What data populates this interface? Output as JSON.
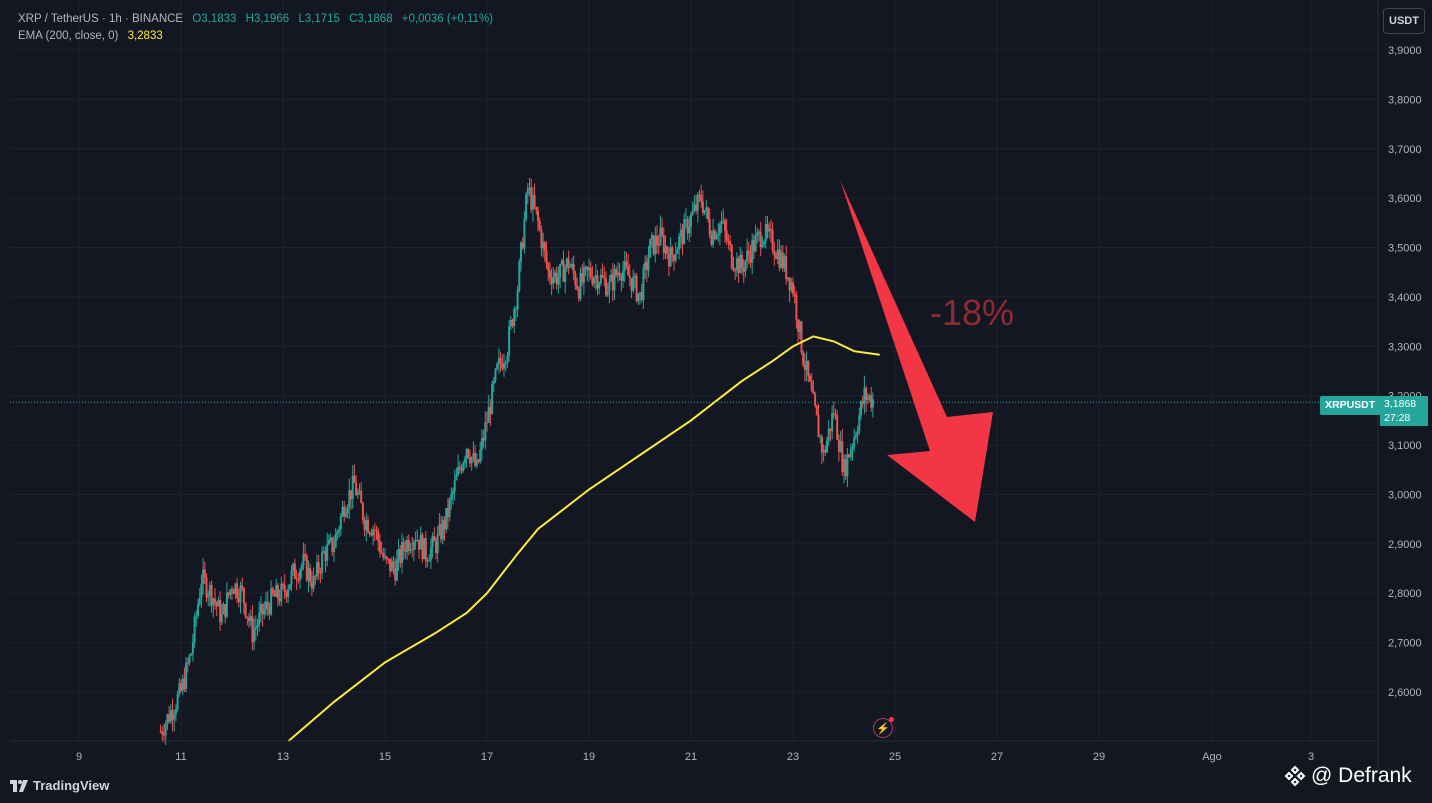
{
  "legend": {
    "symbol": "XRP / TetherUS · 1h · BINANCE",
    "open": "O3,1833",
    "high": "H3,1966",
    "low": "L3,1715",
    "close": "C3,1868",
    "change": "+0,0036 (+0,11%)",
    "ema_label": "EMA (200, close, 0)",
    "ema_value": "3,2833"
  },
  "currency_button": "USDT",
  "price_tag": {
    "symbol": "XRPUSDT",
    "price": "3,1868",
    "countdown": "27:28"
  },
  "annotation": {
    "text": "-18%",
    "arrow_color": "#f23645"
  },
  "footer": {
    "brand": "TradingView",
    "watermark": "@ Defrank"
  },
  "colors": {
    "up": "#26a69a",
    "down": "#ef5350",
    "ema": "#ffeb3b",
    "background": "#131722",
    "grid": "#1e222d"
  },
  "chart_data": {
    "type": "line",
    "title": "",
    "ylim": [
      2.5,
      3.95
    ],
    "y_ticks": [
      "2,6000",
      "2,7000",
      "2,8000",
      "2,9000",
      "3,0000",
      "3,1000",
      "3,2000",
      "3,3000",
      "3,4000",
      "3,5000",
      "3,6000",
      "3,7000",
      "3,8000",
      "3,9000"
    ],
    "x_ticks": [
      "9",
      "11",
      "13",
      "15",
      "17",
      "19",
      "21",
      "23",
      "25",
      "27",
      "29",
      "Ago",
      "3"
    ],
    "current_price": 3.1868,
    "series": [
      {
        "name": "XRP / TetherUS",
        "kind": "candlestick-close",
        "x": [
          10.6,
          10.8,
          11.0,
          11.2,
          11.4,
          11.6,
          11.8,
          12.0,
          12.2,
          12.4,
          12.6,
          12.8,
          13.0,
          13.2,
          13.4,
          13.6,
          13.8,
          14.0,
          14.2,
          14.4,
          14.6,
          14.8,
          15.0,
          15.2,
          15.4,
          15.6,
          15.8,
          16.0,
          16.2,
          16.4,
          16.6,
          16.8,
          17.0,
          17.2,
          17.4,
          17.6,
          17.8,
          18.0,
          18.2,
          18.4,
          18.6,
          18.8,
          19.0,
          19.2,
          19.4,
          19.6,
          19.8,
          20.0,
          20.2,
          20.4,
          20.6,
          20.8,
          21.0,
          21.2,
          21.4,
          21.6,
          21.8,
          22.0,
          22.2,
          22.4,
          22.6,
          22.8,
          23.0,
          23.2,
          23.4,
          23.6,
          23.8,
          24.0,
          24.2,
          24.4,
          24.6
        ],
        "values": [
          2.52,
          2.56,
          2.6,
          2.68,
          2.83,
          2.8,
          2.75,
          2.82,
          2.8,
          2.72,
          2.76,
          2.79,
          2.8,
          2.84,
          2.86,
          2.82,
          2.88,
          2.9,
          2.98,
          3.02,
          2.95,
          2.93,
          2.86,
          2.85,
          2.9,
          2.92,
          2.88,
          2.9,
          2.95,
          3.03,
          3.1,
          3.05,
          3.15,
          3.25,
          3.3,
          3.42,
          3.62,
          3.55,
          3.45,
          3.44,
          3.47,
          3.42,
          3.45,
          3.44,
          3.42,
          3.46,
          3.44,
          3.4,
          3.5,
          3.52,
          3.48,
          3.52,
          3.56,
          3.6,
          3.53,
          3.55,
          3.48,
          3.46,
          3.5,
          3.53,
          3.51,
          3.47,
          3.42,
          3.28,
          3.18,
          3.08,
          3.17,
          3.05,
          3.12,
          3.2,
          3.19
        ]
      },
      {
        "name": "EMA (200, close, 0)",
        "kind": "line",
        "x": [
          13.1,
          14.0,
          15.0,
          16.0,
          16.6,
          17.0,
          17.6,
          18.0,
          19.0,
          20.0,
          21.0,
          22.0,
          22.6,
          23.0,
          23.4,
          23.8,
          24.2,
          24.7
        ],
        "values": [
          2.5,
          2.58,
          2.66,
          2.72,
          2.76,
          2.8,
          2.88,
          2.93,
          3.01,
          3.08,
          3.15,
          3.23,
          3.27,
          3.3,
          3.32,
          3.31,
          3.29,
          3.283
        ]
      }
    ]
  }
}
